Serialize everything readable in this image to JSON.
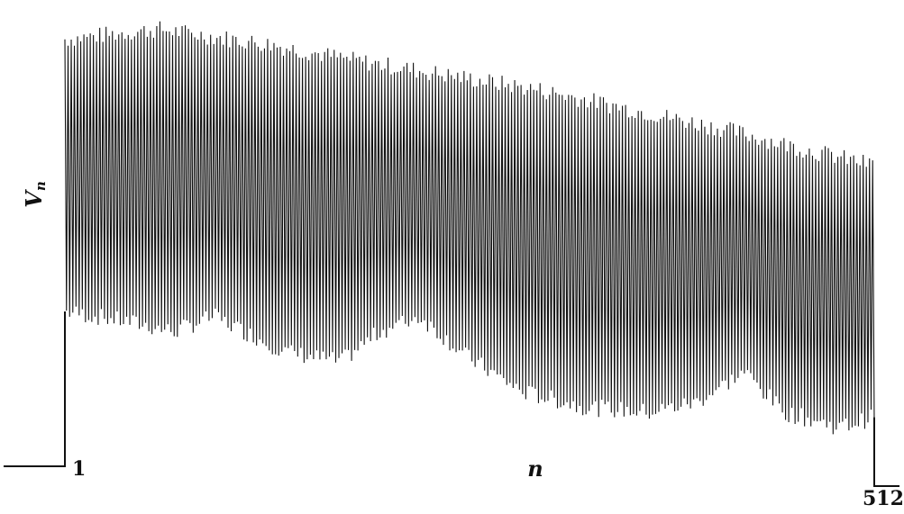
{
  "chart_data": {
    "type": "line",
    "title": "",
    "xlabel": "n",
    "ylabel": "Vn",
    "ylabel_base": "V",
    "ylabel_sub": "n",
    "x_tick_labels": [
      "1",
      "512"
    ],
    "xlim": [
      1,
      512
    ],
    "ylim": [
      0,
      1
    ],
    "grid": false,
    "legend": "none",
    "line_color": "#111111",
    "series": [
      {
        "x_start": 1,
        "x_end": 512,
        "oscillation_period_n": 2,
        "upper_envelope": [
          [
            1,
            0.94
          ],
          [
            60,
            0.96
          ],
          [
            130,
            0.93
          ],
          [
            180,
            0.9
          ],
          [
            240,
            0.87
          ],
          [
            300,
            0.84
          ],
          [
            360,
            0.8
          ],
          [
            420,
            0.76
          ],
          [
            470,
            0.72
          ],
          [
            512,
            0.69
          ]
        ],
        "lower_envelope": [
          [
            1,
            0.4
          ],
          [
            40,
            0.38
          ],
          [
            70,
            0.36
          ],
          [
            95,
            0.39
          ],
          [
            140,
            0.32
          ],
          [
            175,
            0.3
          ],
          [
            200,
            0.36
          ],
          [
            225,
            0.39
          ],
          [
            255,
            0.31
          ],
          [
            290,
            0.24
          ],
          [
            330,
            0.21
          ],
          [
            370,
            0.2
          ],
          [
            400,
            0.22
          ],
          [
            430,
            0.28
          ],
          [
            455,
            0.2
          ],
          [
            490,
            0.17
          ],
          [
            512,
            0.19
          ]
        ]
      }
    ]
  }
}
